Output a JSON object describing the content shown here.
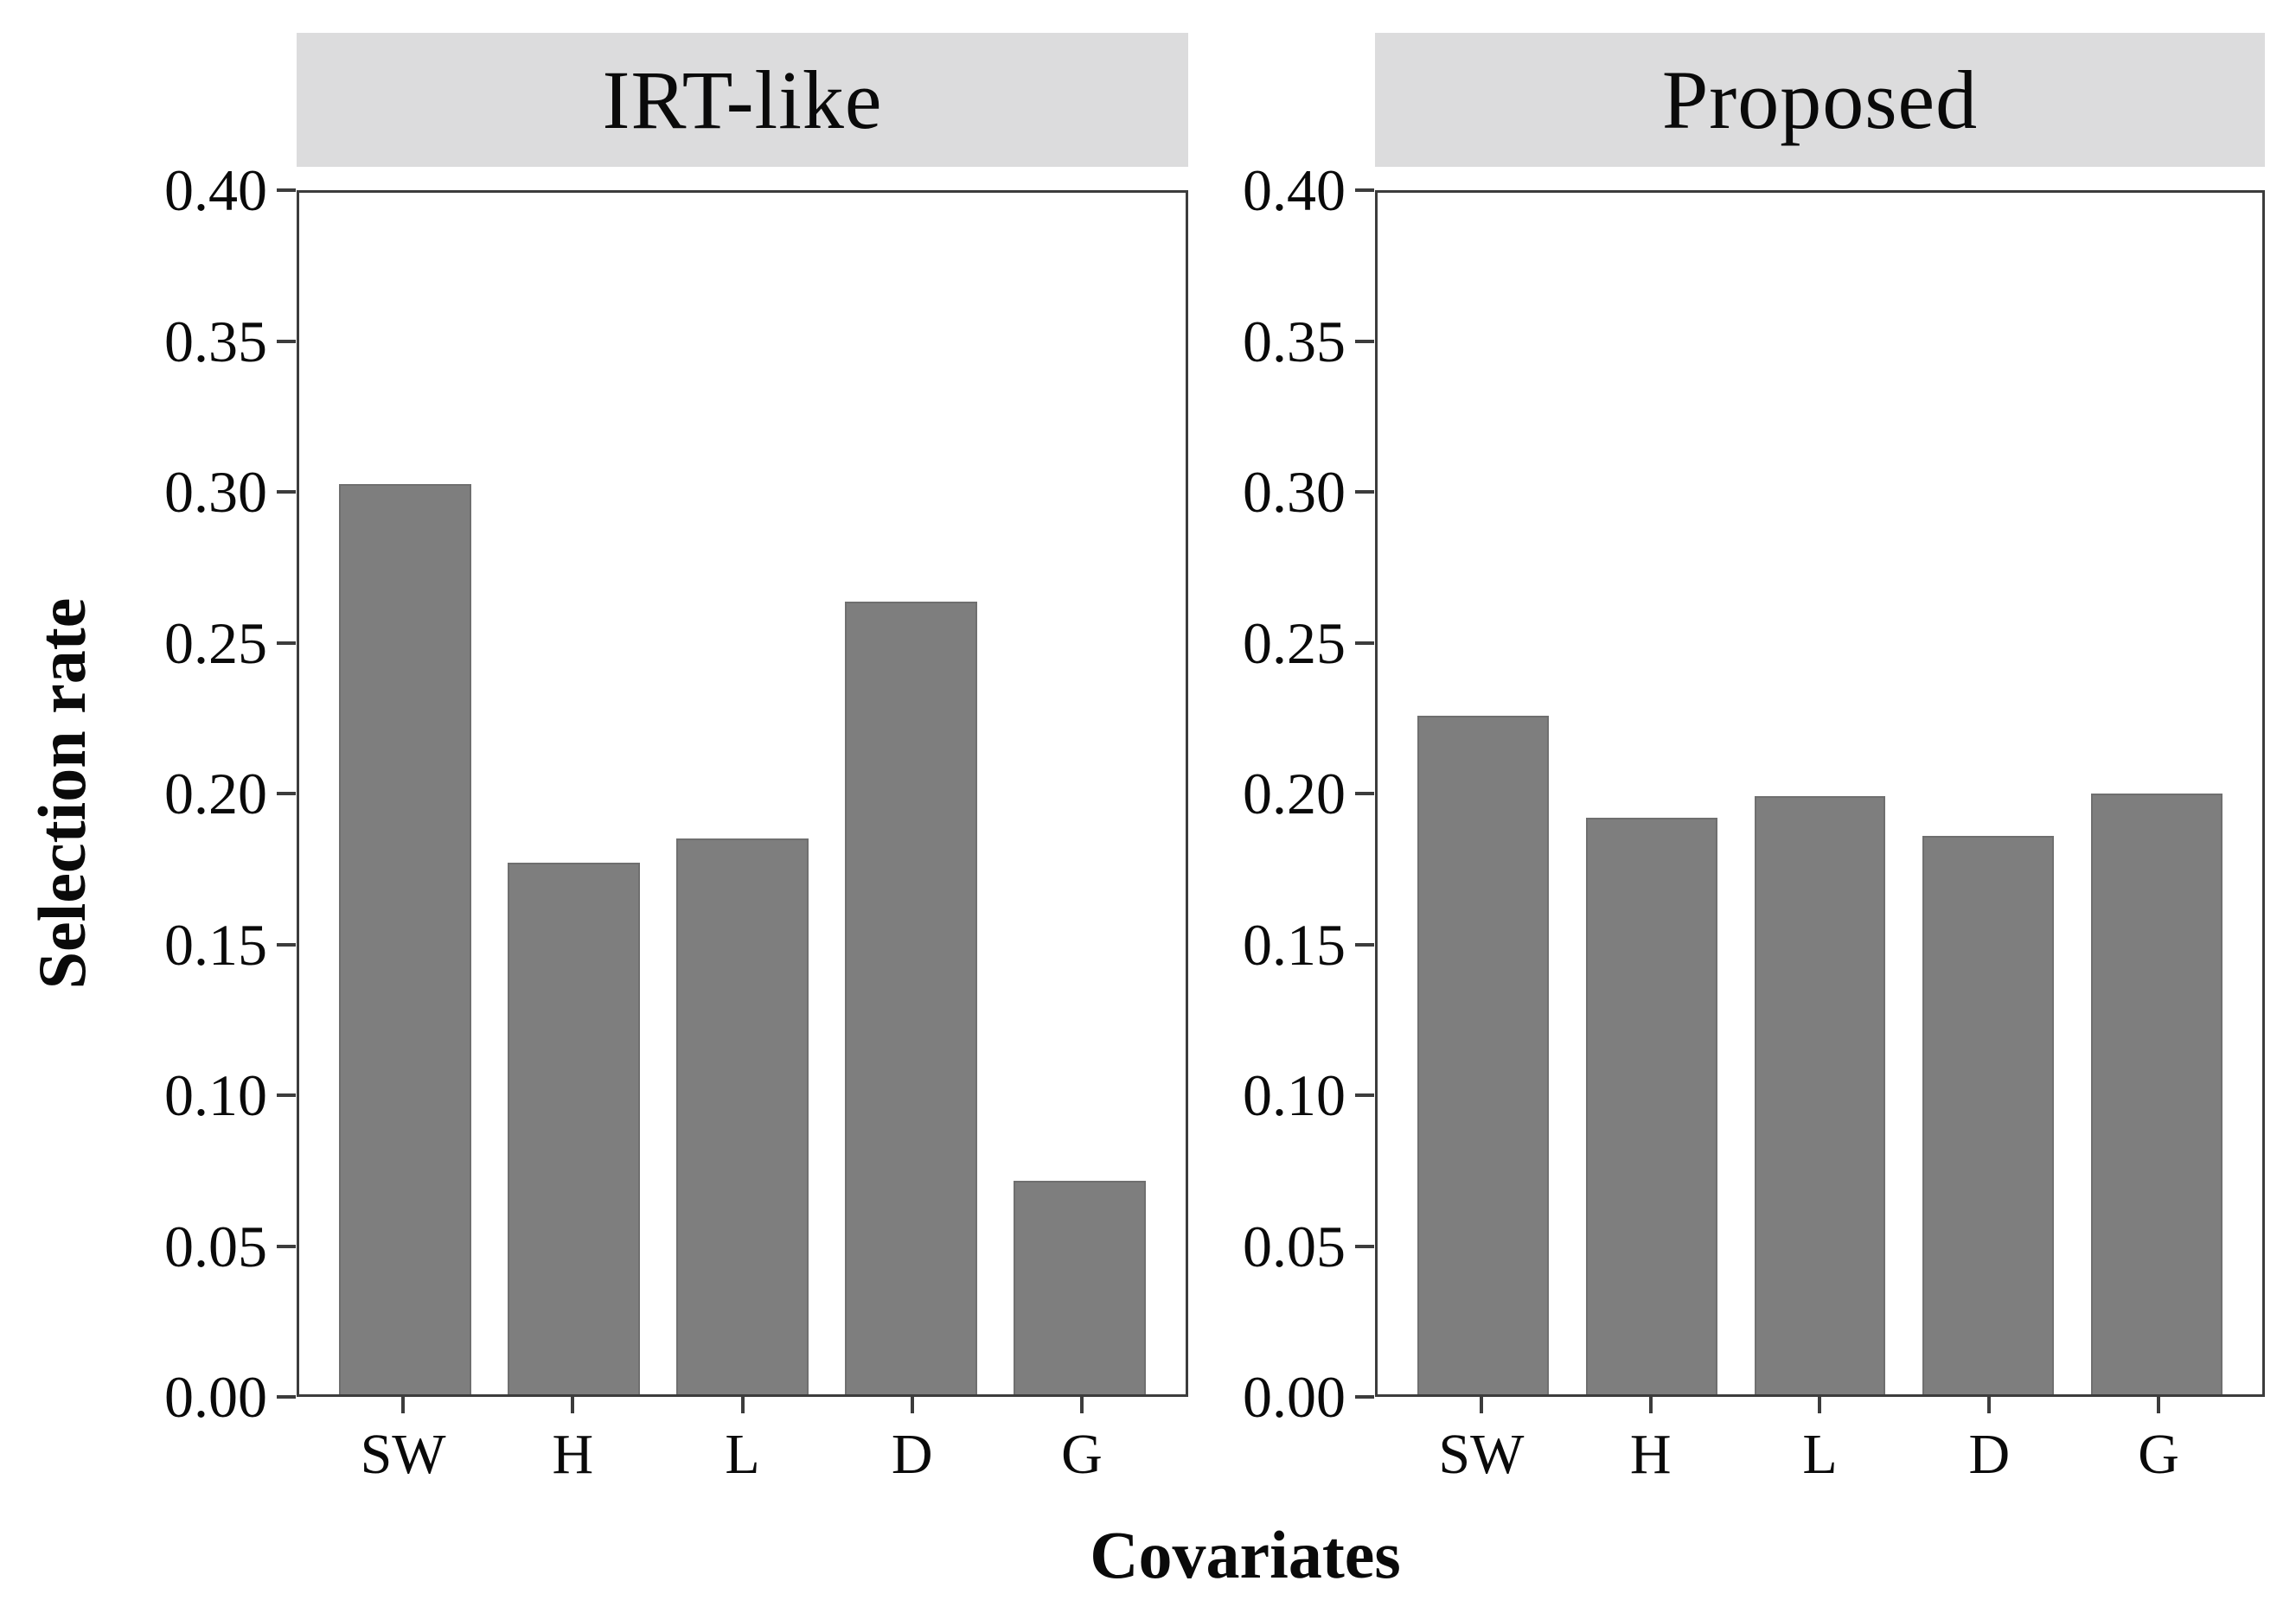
{
  "figure": {
    "ylabel": "Selection rate",
    "xlabel": "Covariates"
  },
  "colors": {
    "background": "#ffffff",
    "bar_fill": "#7e7e7e",
    "bar_edge": "#6f6f6f",
    "strip_background": "#dcdcdd",
    "axis_line": "#3c3c3c",
    "text": "#0a0a0a"
  },
  "axis": {
    "y_tick_labels": [
      "0.40",
      "0.35",
      "0.30",
      "0.25",
      "0.20",
      "0.15",
      "0.10",
      "0.05",
      "0.00"
    ],
    "y_min": 0.0,
    "y_max": 0.4
  },
  "chart_data": [
    {
      "type": "bar",
      "title": "IRT-like",
      "categories": [
        "SW",
        "H",
        "L",
        "D",
        "G"
      ],
      "values": [
        0.303,
        0.177,
        0.185,
        0.264,
        0.071
      ],
      "xlabel": "Covariates",
      "ylabel": "Selection rate",
      "ylim": [
        0.0,
        0.4
      ],
      "grid": false,
      "legend": "none"
    },
    {
      "type": "bar",
      "title": "Proposed",
      "categories": [
        "SW",
        "H",
        "L",
        "D",
        "G"
      ],
      "values": [
        0.226,
        0.192,
        0.199,
        0.186,
        0.2
      ],
      "xlabel": "Covariates",
      "ylabel": "Selection rate",
      "ylim": [
        0.0,
        0.4
      ],
      "grid": false,
      "legend": "none"
    }
  ]
}
